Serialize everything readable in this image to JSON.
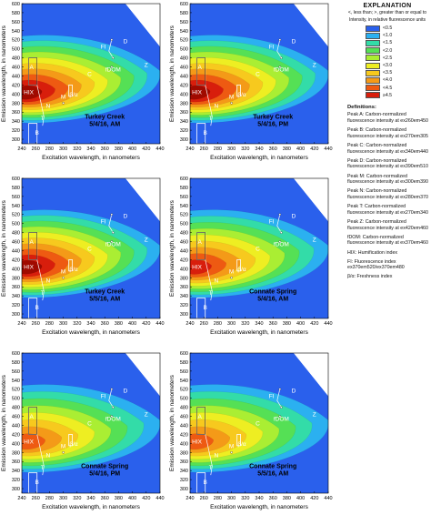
{
  "axes": {
    "xlabel": "Excitation wavelength, in nanometers",
    "ylabel": "Emission wavelength, in nanometers"
  },
  "colors": {
    "levels": [
      "#4b2fd0",
      "#2a60ec",
      "#2bb0f0",
      "#33dca8",
      "#55e055",
      "#aaee33",
      "#eeee22",
      "#f7c91e",
      "#f49a18",
      "#ee5a12",
      "#d81e0c",
      "#a00a00"
    ]
  },
  "legend": {
    "title": "EXPLANATION",
    "subtitle": "<, less than; >, greater than or equal to",
    "units": "Intensity, in relative fluorescence units",
    "levels": [
      "<0.5",
      "<1.0",
      "<1.5",
      "<2.0",
      "<2.5",
      "<3.0",
      "<3.5",
      "<4.0",
      "<4.5",
      "≥4.5"
    ],
    "definitions_heading": "Definitions:",
    "definitions": [
      "Peak A: Carbon-normalized fluorescence intensity at ex260em450",
      "Peak B: Carbon-normalized fluorescence intensity at ex270em305",
      "Peak C: Carbon-normalized fluorescence intensity at ex340em440",
      "Peak D: Carbon-normalized fluorescence intensity at ex390em510",
      "Peak M: Carbon-normalized fluorescence intensity at ex300em390",
      "Peak N: Carbon-normalized fluorescence intensity at ex280em370",
      "Peak T: Carbon-normalized fluorescence intensity at ex270em340",
      "Peak Z: Carbon-normalized fluorescence intensity at ex420em460",
      "fDOM: Carbon-normalized fluorescence intensity at ex370em460",
      "HIX: Humification index",
      "FI: Fluorescence index ex370em520/ex370em480",
      "β/α: Freshness index"
    ]
  },
  "chart_data": [
    {
      "type": "heatmap",
      "title": "Turkey Creek",
      "subtitle": "5/4/16, AM",
      "peak_intensity_level": "≥4.5",
      "xlim": [
        240,
        440
      ],
      "ylim": [
        290,
        600
      ],
      "xticks": [
        240,
        260,
        280,
        300,
        320,
        340,
        360,
        380,
        400,
        420,
        440
      ],
      "yticks": [
        300,
        320,
        340,
        360,
        380,
        400,
        420,
        440,
        460,
        480,
        500,
        520,
        540,
        560,
        580,
        600
      ],
      "region_labels": [
        "A",
        "B",
        "C",
        "D",
        "T",
        "N",
        "M",
        "β/α",
        "HIX",
        "FI",
        "fDOM",
        "Z"
      ]
    },
    {
      "type": "heatmap",
      "title": "Turkey Creek",
      "subtitle": "5/4/16, PM",
      "peak_intensity_level": "≥4.5",
      "xlim": [
        240,
        440
      ],
      "ylim": [
        290,
        600
      ],
      "xticks": [
        240,
        260,
        280,
        300,
        320,
        340,
        360,
        380,
        400,
        420,
        440
      ],
      "yticks": [
        300,
        320,
        340,
        360,
        380,
        400,
        420,
        440,
        460,
        480,
        500,
        520,
        540,
        560,
        580,
        600
      ],
      "region_labels": [
        "A",
        "B",
        "C",
        "D",
        "T",
        "N",
        "M",
        "β/α",
        "HIX",
        "FI",
        "fDOM",
        "Z"
      ]
    },
    {
      "type": "heatmap",
      "title": "Turkey Creek",
      "subtitle": "5/5/16, AM",
      "peak_intensity_level": "≥4.5",
      "xlim": [
        240,
        440
      ],
      "ylim": [
        290,
        600
      ],
      "xticks": [
        240,
        260,
        280,
        300,
        320,
        340,
        360,
        380,
        400,
        420,
        440
      ],
      "yticks": [
        300,
        320,
        340,
        360,
        380,
        400,
        420,
        440,
        460,
        480,
        500,
        520,
        540,
        560,
        580,
        600
      ],
      "region_labels": [
        "A",
        "B",
        "C",
        "D",
        "T",
        "N",
        "M",
        "β/α",
        "HIX",
        "FI",
        "fDOM",
        "Z"
      ]
    },
    {
      "type": "heatmap",
      "title": "Connate Spring",
      "subtitle": "5/4/16, AM",
      "peak_intensity_level": "<4.5",
      "xlim": [
        240,
        440
      ],
      "ylim": [
        290,
        600
      ],
      "xticks": [
        240,
        260,
        280,
        300,
        320,
        340,
        360,
        380,
        400,
        420,
        440
      ],
      "yticks": [
        300,
        320,
        340,
        360,
        380,
        400,
        420,
        440,
        460,
        480,
        500,
        520,
        540,
        560,
        580,
        600
      ],
      "region_labels": [
        "A",
        "B",
        "C",
        "D",
        "T",
        "N",
        "M",
        "β/α",
        "HIX",
        "FI",
        "fDOM",
        "Z"
      ]
    },
    {
      "type": "heatmap",
      "title": "Connate Spring",
      "subtitle": "5/4/16, PM",
      "peak_intensity_level": "<4.0",
      "xlim": [
        240,
        440
      ],
      "ylim": [
        290,
        600
      ],
      "xticks": [
        240,
        260,
        280,
        300,
        320,
        340,
        360,
        380,
        400,
        420,
        440
      ],
      "yticks": [
        300,
        320,
        340,
        360,
        380,
        400,
        420,
        440,
        460,
        480,
        500,
        520,
        540,
        560,
        580,
        600
      ],
      "region_labels": [
        "A",
        "B",
        "C",
        "D",
        "T",
        "N",
        "M",
        "β/α",
        "HIX",
        "FI",
        "fDOM",
        "Z"
      ]
    },
    {
      "type": "heatmap",
      "title": "Connate Spring",
      "subtitle": "5/5/16, AM",
      "peak_intensity_level": "<4.0",
      "xlim": [
        240,
        440
      ],
      "ylim": [
        290,
        600
      ],
      "xticks": [
        240,
        260,
        280,
        300,
        320,
        340,
        360,
        380,
        400,
        420,
        440
      ],
      "yticks": [
        300,
        320,
        340,
        360,
        380,
        400,
        420,
        440,
        460,
        480,
        500,
        520,
        540,
        560,
        580,
        600
      ],
      "region_labels": [
        "A",
        "B",
        "C",
        "D",
        "T",
        "N",
        "M",
        "β/α",
        "HIX",
        "FI",
        "fDOM",
        "Z"
      ]
    }
  ]
}
